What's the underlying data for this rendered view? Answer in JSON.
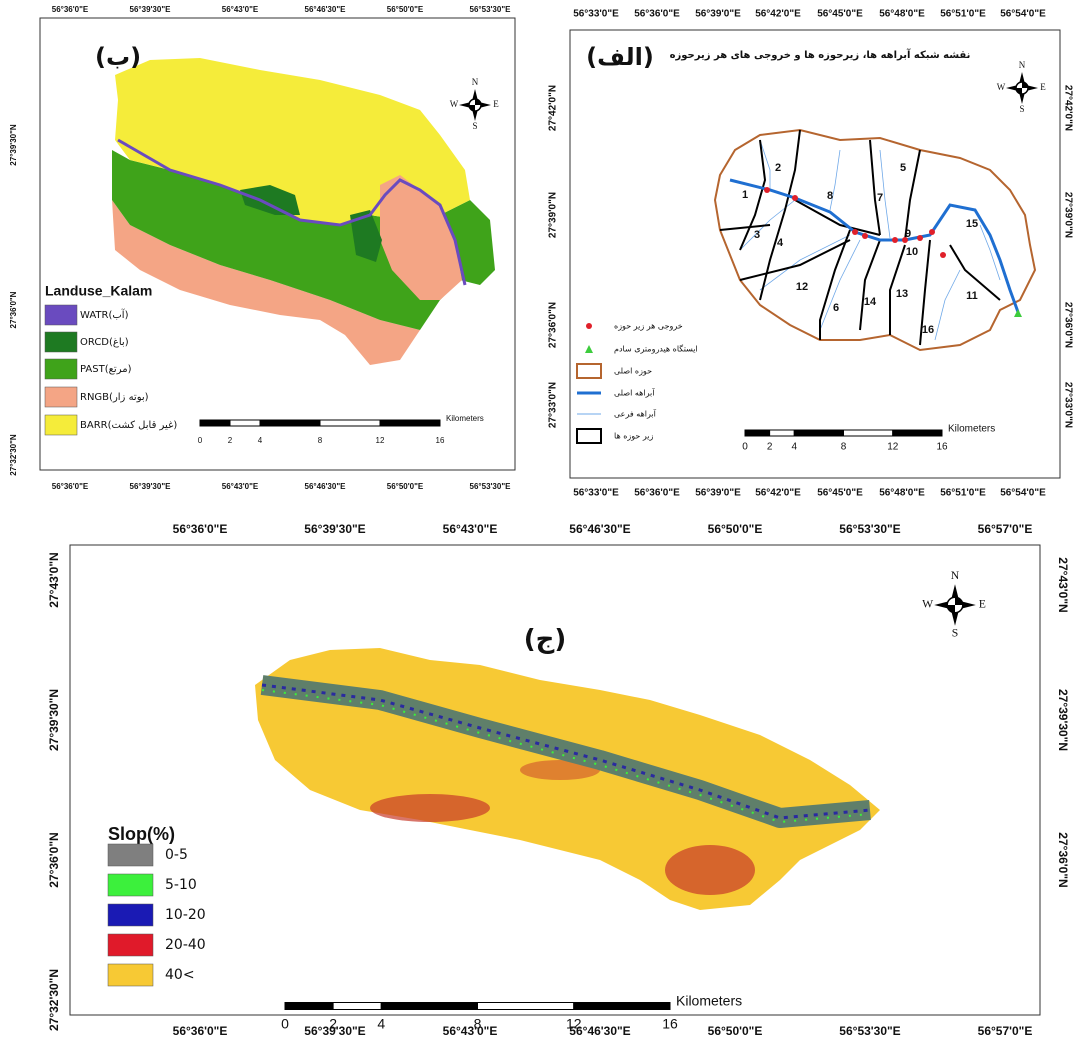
{
  "panels": [
    {
      "label": "(ب)",
      "lon_top": [
        "56°36'0\"E",
        "56°39'30\"E",
        "56°43'0\"E",
        "56°46'30\"E",
        "56°50'0\"E",
        "56°53'30\"E"
      ],
      "lon_bottom": [
        "56°36'0\"E",
        "56°39'30\"E",
        "56°43'0\"E",
        "56°46'30\"E",
        "56°50'0\"E",
        "56°53'30\"E"
      ],
      "lat_left": [
        "27°39'30\"N",
        "27°36'0\"N",
        "27°32'30\"N"
      ],
      "legend": {
        "title": "Landuse_Kalam",
        "items": [
          {
            "label": "WATR(آب)",
            "color": "#6a4bbf",
            "symbol": "box"
          },
          {
            "label": "ORCD(باغ)",
            "color": "#1e7a22",
            "symbol": "box"
          },
          {
            "label": "PAST(مرتع)",
            "color": "#3fa31a",
            "symbol": "box"
          },
          {
            "label": "RNGB(بوته زار)",
            "color": "#f4a585",
            "symbol": "box"
          },
          {
            "label": "BARR(غیر قابل کشت)",
            "color": "#f5ec3a",
            "symbol": "box"
          }
        ]
      },
      "scale_bar": {
        "ticks": [
          0,
          2,
          4,
          8,
          12,
          16
        ],
        "unit": "Kilometers"
      },
      "north_arrow": {
        "n": "N",
        "s": "S",
        "w": "W",
        "e": "E"
      }
    },
    {
      "label": "(الف)",
      "title": "نقشه شبکه آبراهه ها، زیرحوزه ها و خروجی های هر زیرحوزه",
      "lon_top": [
        "56°33'0\"E",
        "56°36'0\"E",
        "56°39'0\"E",
        "56°42'0\"E",
        "56°45'0\"E",
        "56°48'0\"E",
        "56°51'0\"E",
        "56°54'0\"E"
      ],
      "lon_bottom": [
        "56°33'0\"E",
        "56°36'0\"E",
        "56°39'0\"E",
        "56°42'0\"E",
        "56°45'0\"E",
        "56°48'0\"E",
        "56°51'0\"E",
        "56°54'0\"E"
      ],
      "lat_left": [
        "27°42'0\"N",
        "27°39'0\"N",
        "27°36'0\"N",
        "27°33'0\"N"
      ],
      "lat_right": [
        "27°42'0\"N",
        "27°39'0\"N",
        "27°36'0\"N",
        "27°33'0\"N"
      ],
      "legend": {
        "items": [
          {
            "label": "خروجی هر زیر حوزه",
            "color": "#e0202a",
            "symbol": "dot"
          },
          {
            "label": "ایستگاه هیدرومتری سادم",
            "color": "#3dcc3d",
            "symbol": "triangle"
          },
          {
            "label": "حوزه اصلی",
            "color": "#b5652f",
            "symbol": "outline"
          },
          {
            "label": "آبراهه اصلی",
            "color": "#1f6fd1",
            "symbol": "thick-line"
          },
          {
            "label": "آبراهه فرعی",
            "color": "#6fa8e8",
            "symbol": "thin-line"
          },
          {
            "label": "زیر حوزه ها",
            "color": "#000000",
            "symbol": "outline"
          }
        ]
      },
      "subbasins": [
        1,
        2,
        3,
        4,
        5,
        6,
        7,
        8,
        9,
        10,
        11,
        12,
        13,
        14,
        15,
        16
      ],
      "scale_bar": {
        "ticks": [
          0,
          2,
          4,
          8,
          12,
          16
        ],
        "unit": "Kilometers"
      },
      "north_arrow": {
        "n": "N",
        "s": "S",
        "w": "W",
        "e": "E"
      }
    },
    {
      "label": "(ج)",
      "lon_top": [
        "56°36'0\"E",
        "56°39'30\"E",
        "56°43'0\"E",
        "56°46'30\"E",
        "56°50'0\"E",
        "56°53'30\"E",
        "56°57'0\"E"
      ],
      "lon_bottom": [
        "56°36'0\"E",
        "56°39'30\"E",
        "56°43'0\"E",
        "56°46'30\"E",
        "56°50'0\"E",
        "56°53'30\"E",
        "56°57'0\"E"
      ],
      "lat_left": [
        "27°43'0\"N",
        "27°39'30\"N",
        "27°36'0\"N",
        "27°32'30\"N"
      ],
      "lat_right": [
        "27°43'0\"N",
        "27°39'30\"N",
        "27°36'0\"N"
      ],
      "legend": {
        "title": "Slop(%)",
        "items": [
          {
            "label": "0-5",
            "color": "#7f7f7f",
            "symbol": "box"
          },
          {
            "label": "5-10",
            "color": "#3cf03c",
            "symbol": "box"
          },
          {
            "label": "10-20",
            "color": "#1a1ab4",
            "symbol": "box"
          },
          {
            "label": "20-40",
            "color": "#e01a2a",
            "symbol": "box"
          },
          {
            "label": "40<",
            "color": "#f7c934",
            "symbol": "box"
          }
        ]
      },
      "scale_bar": {
        "ticks": [
          0,
          2,
          4,
          8,
          12,
          16
        ],
        "unit": "Kilometers"
      },
      "north_arrow": {
        "n": "N",
        "s": "S",
        "w": "W",
        "e": "E"
      }
    }
  ]
}
